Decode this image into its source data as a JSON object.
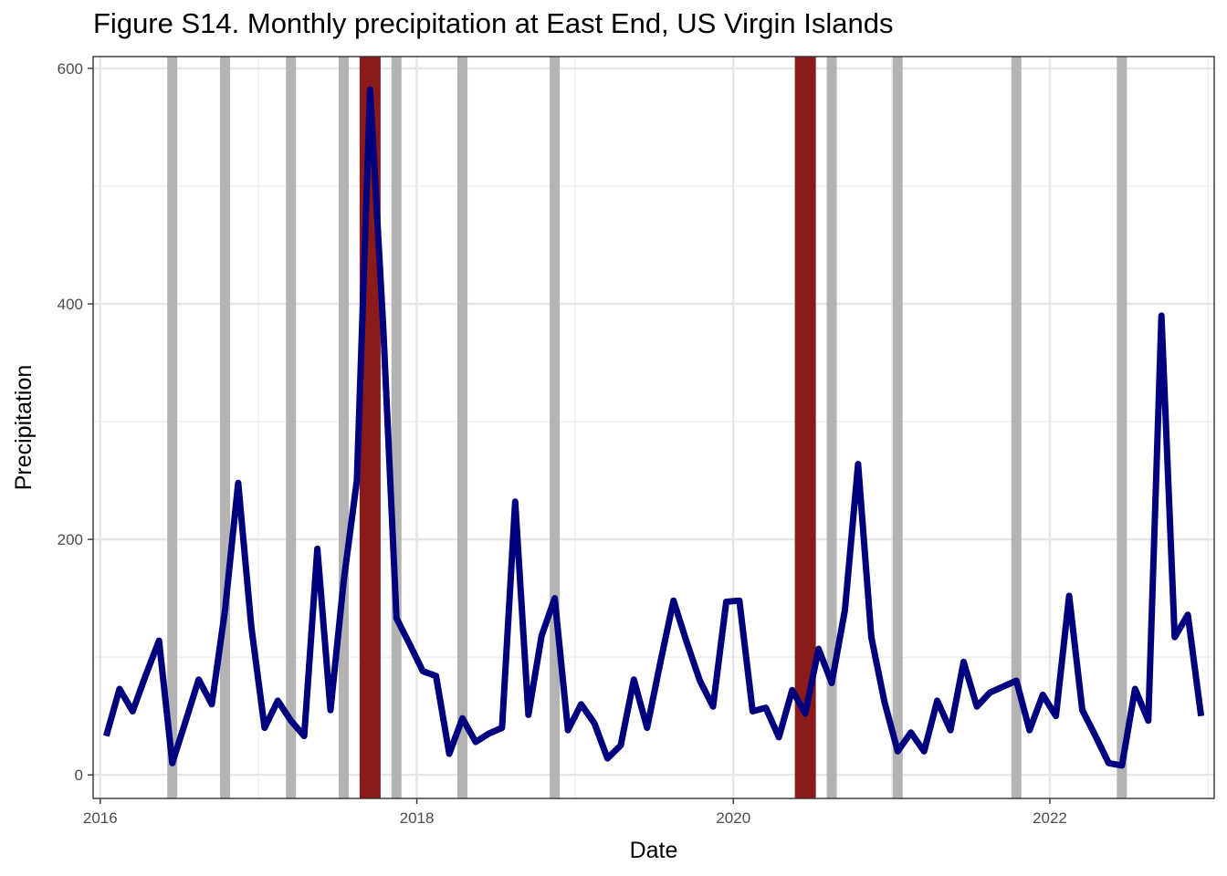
{
  "chart_data": {
    "type": "line",
    "title": "Figure S14. Monthly precipitation at East End, US Virgin Islands",
    "xlabel": "Date",
    "ylabel": "Precipitation",
    "xlim": [
      "2015-12-15",
      "2023-01-15"
    ],
    "ylim": [
      -20,
      610
    ],
    "x_ticks": [
      "2016-01-01",
      "2018-01-01",
      "2020-01-01",
      "2022-01-01"
    ],
    "x_tick_labels": [
      "2016",
      "2018",
      "2020",
      "2022"
    ],
    "y_ticks": [
      0,
      200,
      400,
      600
    ],
    "y_tick_labels": [
      "0",
      "200",
      "400",
      "600"
    ],
    "grid": true,
    "legend": "none",
    "line_color": "#00007f",
    "grey_band_color": "#b3b3b3",
    "red_band_color": "#8b1a1a",
    "grey_bands": [
      "2016-06",
      "2016-10",
      "2017-03",
      "2017-07",
      "2017-11",
      "2018-04",
      "2018-11",
      "2020-08",
      "2021-01",
      "2021-10",
      "2022-06"
    ],
    "red_bands": [
      "2017-09",
      "2020-06"
    ],
    "series": [
      {
        "x": [
          "2016-01",
          "2016-02",
          "2016-03",
          "2016-04",
          "2016-05",
          "2016-06",
          "2016-07",
          "2016-08",
          "2016-09",
          "2016-10",
          "2016-11",
          "2016-12",
          "2017-01",
          "2017-02",
          "2017-03",
          "2017-04",
          "2017-05",
          "2017-06",
          "2017-07",
          "2017-08",
          "2017-09",
          "2017-10",
          "2017-11",
          "2017-12",
          "2018-01",
          "2018-02",
          "2018-03",
          "2018-04",
          "2018-05",
          "2018-06",
          "2018-07",
          "2018-08",
          "2018-09",
          "2018-10",
          "2018-11",
          "2018-12",
          "2019-01",
          "2019-02",
          "2019-03",
          "2019-04",
          "2019-05",
          "2019-06",
          "2019-07",
          "2019-08",
          "2019-09",
          "2019-10",
          "2019-11",
          "2019-12",
          "2020-01",
          "2020-02",
          "2020-03",
          "2020-04",
          "2020-05",
          "2020-06",
          "2020-07",
          "2020-08",
          "2020-09",
          "2020-10",
          "2020-11",
          "2020-12",
          "2021-01",
          "2021-02",
          "2021-03",
          "2021-04",
          "2021-05",
          "2021-06",
          "2021-07",
          "2021-08",
          "2021-09",
          "2021-10",
          "2021-11",
          "2021-12",
          "2022-01",
          "2022-02",
          "2022-03",
          "2022-04",
          "2022-05",
          "2022-06",
          "2022-07",
          "2022-08",
          "2022-09",
          "2022-10",
          "2022-11",
          "2022-12"
        ],
        "values": [
          33,
          73,
          54,
          85,
          114,
          10,
          45,
          81,
          60,
          140,
          248,
          125,
          40,
          63,
          46,
          33,
          192,
          55,
          165,
          250,
          582,
          380,
          133,
          111,
          88,
          84,
          18,
          48,
          28,
          35,
          40,
          232,
          51,
          118,
          150,
          38,
          60,
          44,
          14,
          25,
          81,
          40,
          95,
          148,
          113,
          80,
          58,
          147,
          148,
          54,
          57,
          32,
          72,
          52,
          107,
          78,
          140,
          264,
          117,
          62,
          20,
          36,
          20,
          63,
          38,
          96,
          58,
          70,
          75,
          80,
          38,
          68,
          50,
          152,
          55,
          33,
          10,
          8,
          73,
          46,
          390,
          117,
          136,
          50
        ]
      }
    ]
  }
}
